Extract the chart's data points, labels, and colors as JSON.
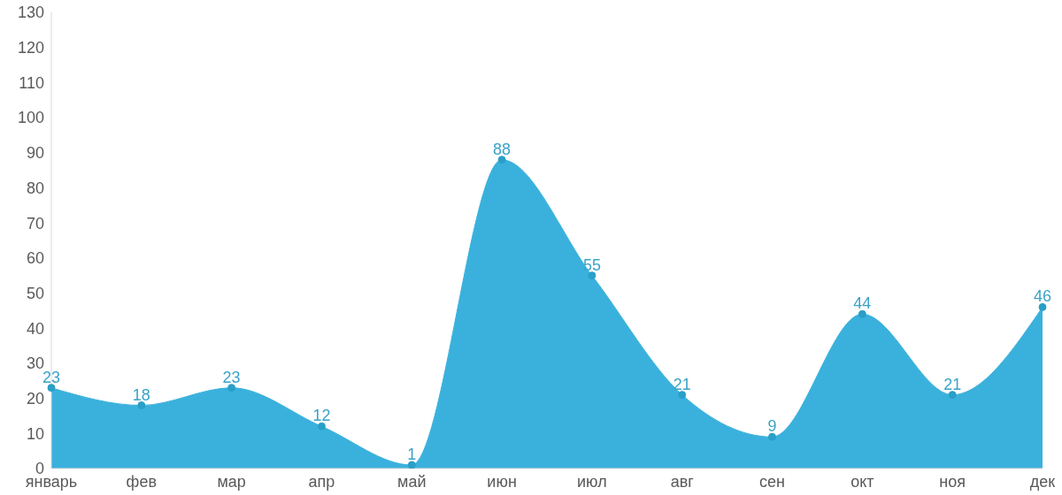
{
  "chart_data": {
    "type": "area",
    "categories": [
      "январь",
      "фев",
      "мар",
      "апр",
      "май",
      "июн",
      "июл",
      "авг",
      "сен",
      "окт",
      "ноя",
      "дек"
    ],
    "values": [
      23,
      18,
      23,
      12,
      1,
      88,
      55,
      21,
      9,
      44,
      21,
      46
    ],
    "color": "#3ab1dc",
    "ylim": [
      0,
      130
    ],
    "yticks": [
      0,
      10,
      20,
      30,
      40,
      50,
      60,
      70,
      80,
      90,
      100,
      110,
      120,
      130
    ],
    "grid": false,
    "legend": false,
    "marker": "circle",
    "data_labels": true
  }
}
